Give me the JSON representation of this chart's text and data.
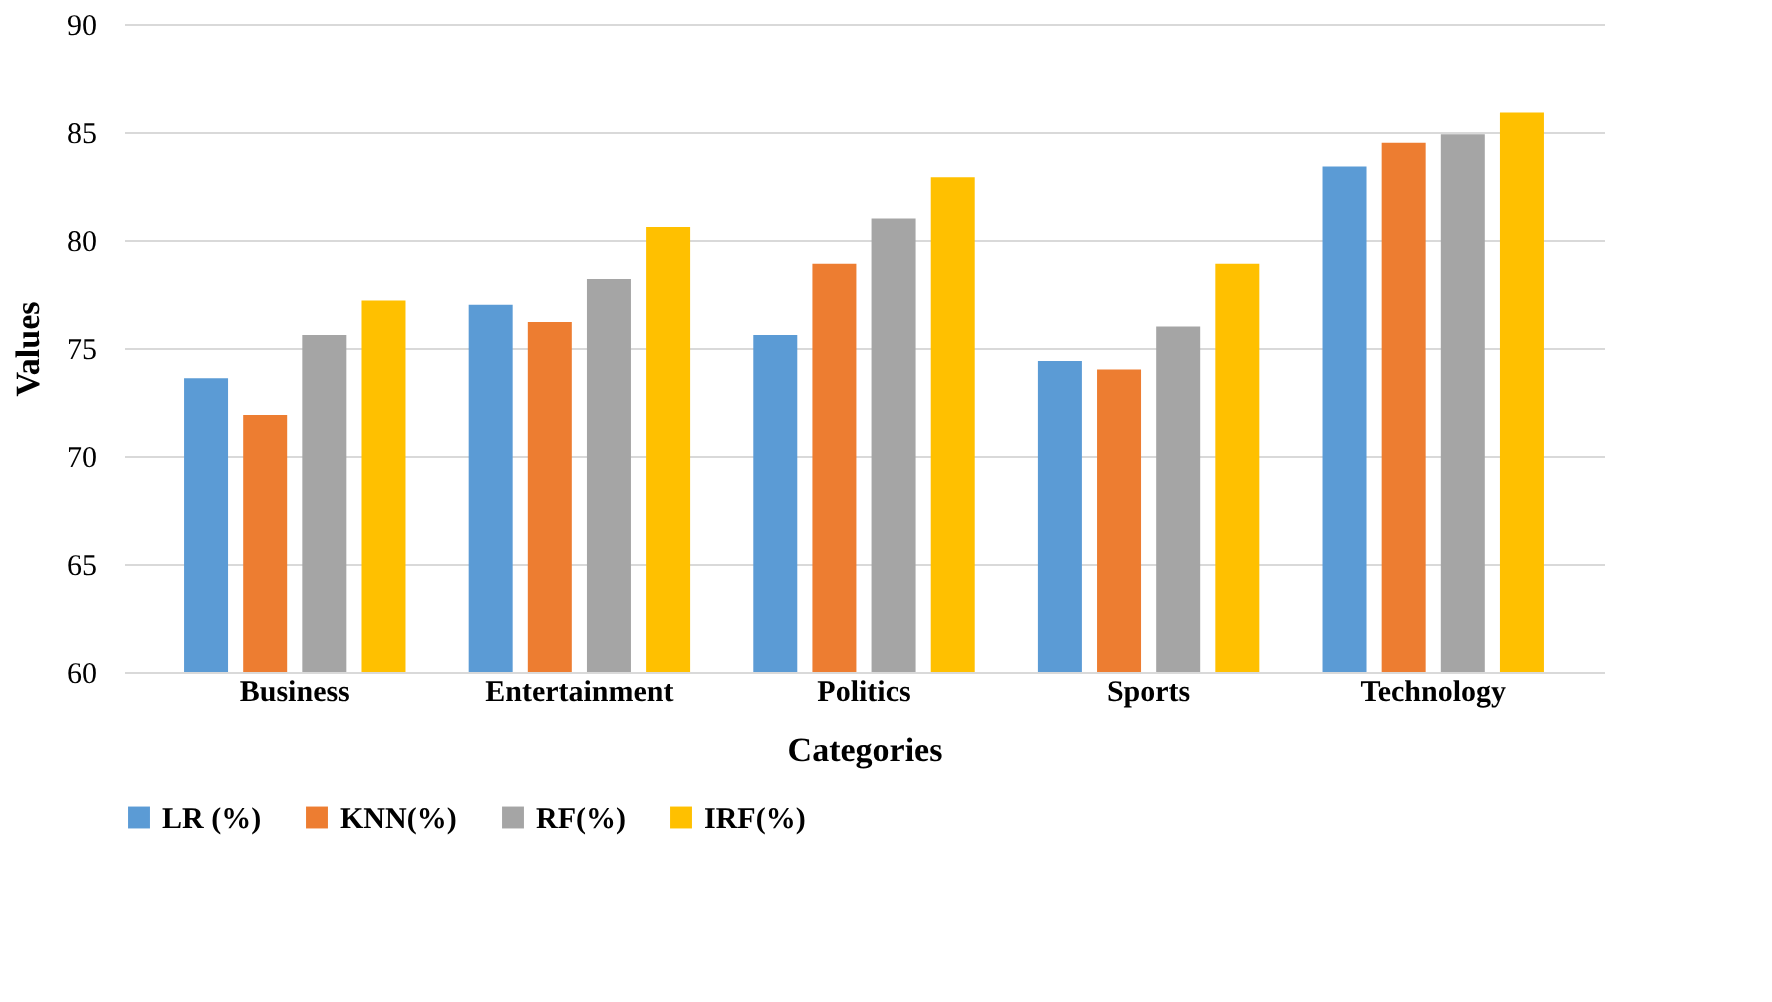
{
  "chart_data": {
    "type": "bar",
    "xlabel": "Categories",
    "ylabel": "Values",
    "categories": [
      "Business",
      "Entertainment",
      "Politics",
      "Sports",
      "Technology"
    ],
    "series": [
      {
        "name": "LR (%)",
        "color": "#5b9bd5",
        "values": [
          73.6,
          77.0,
          75.6,
          74.4,
          83.4
        ]
      },
      {
        "name": "KNN(%)",
        "color": "#ed7d31",
        "values": [
          71.9,
          76.2,
          78.9,
          74.0,
          84.5
        ]
      },
      {
        "name": "RF(%)",
        "color": "#a5a5a5",
        "values": [
          75.6,
          78.2,
          81.0,
          76.0,
          84.9
        ]
      },
      {
        "name": "IRF(%)",
        "color": "#ffc000",
        "values": [
          77.2,
          80.6,
          82.9,
          78.9,
          85.9
        ]
      }
    ],
    "ylim": [
      60,
      90
    ],
    "yticks": [
      60,
      65,
      70,
      75,
      80,
      85,
      90
    ],
    "grid": "y",
    "legend": "bottom"
  }
}
